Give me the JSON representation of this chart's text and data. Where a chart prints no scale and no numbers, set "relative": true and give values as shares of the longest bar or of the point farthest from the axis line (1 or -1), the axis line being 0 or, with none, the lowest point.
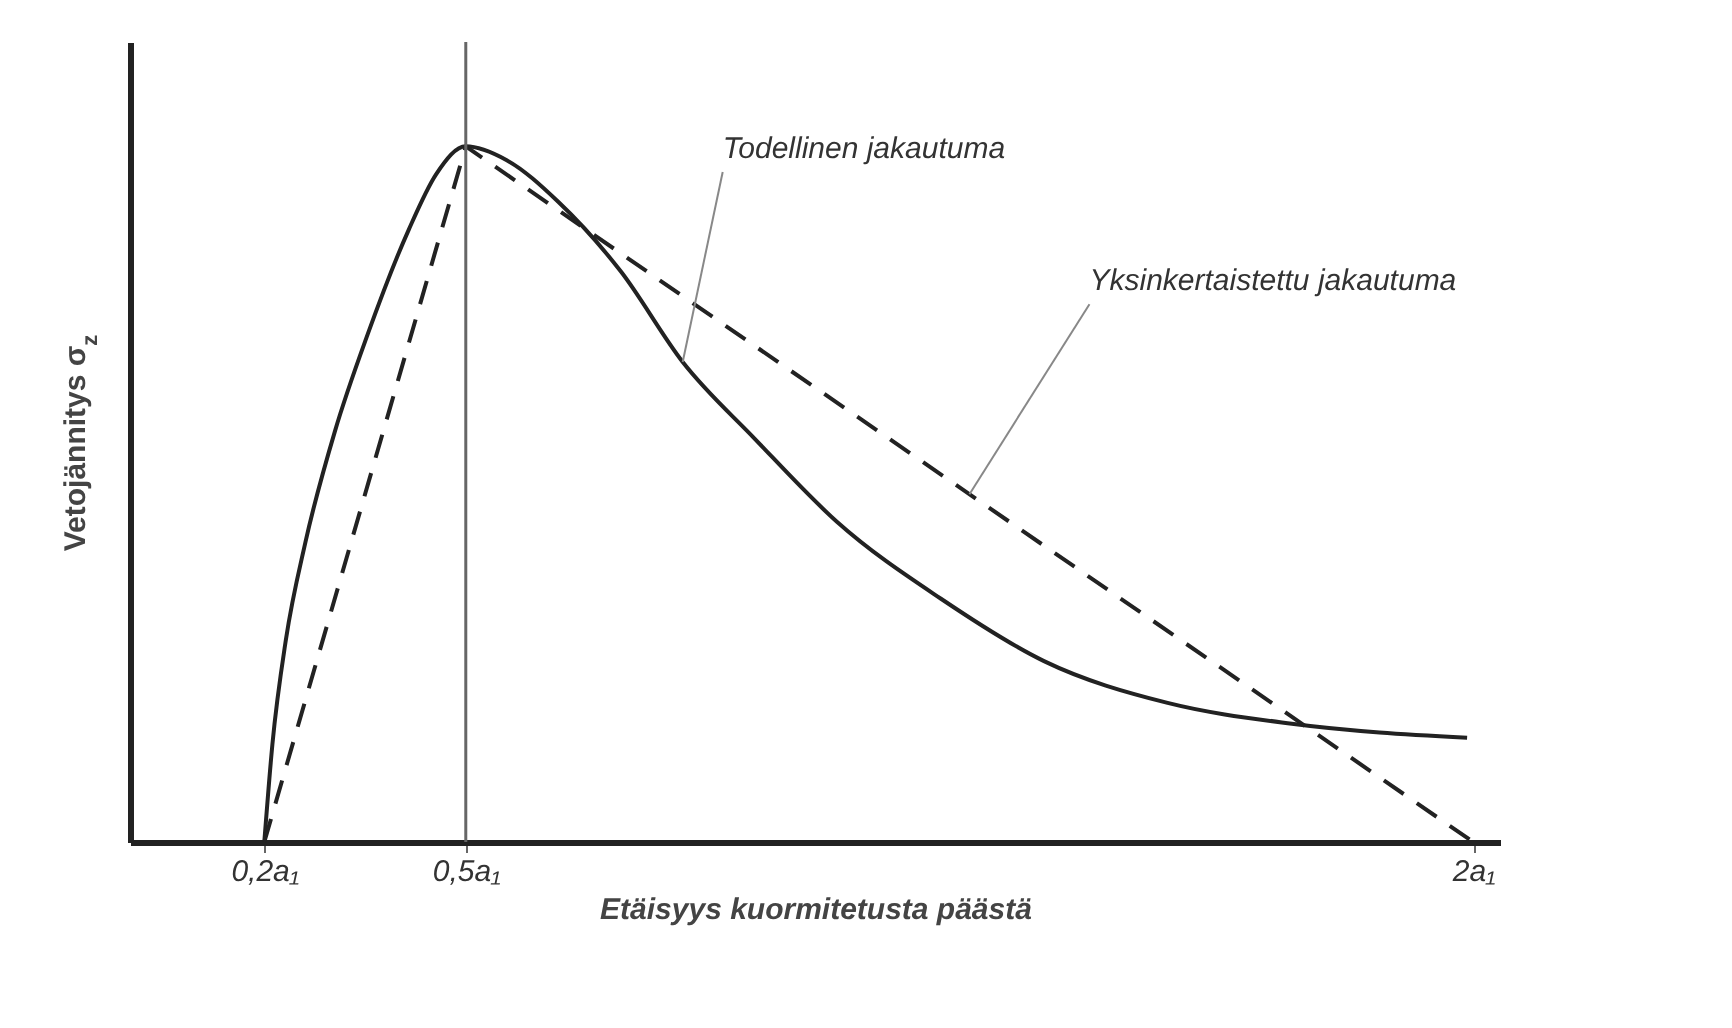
{
  "chart_data": {
    "type": "line",
    "ylabel": "Vetojännitys σ$_{z}$",
    "xlabel": "Etäisyys kuormitetusta päästä",
    "relative": true,
    "grid": false,
    "xlim": [
      0,
      2.04
    ],
    "xticks": [
      {
        "value": 0.2,
        "label": "0,2a₁"
      },
      {
        "value": 0.5,
        "label": "0,5a₁"
      },
      {
        "value": 2,
        "label": "2a₁"
      }
    ],
    "ref_lines": [
      {
        "axis": "x",
        "value": 0.5,
        "color": "#666666"
      }
    ],
    "series": [
      {
        "color": "#222222",
        "line_style": "solid",
        "x": [
          0.2,
          0.212,
          0.232,
          0.261,
          0.305,
          0.354,
          0.415,
          0.456,
          0.5,
          0.561,
          0.638,
          0.731,
          0.823,
          0.93,
          1.053,
          1.207,
          1.361,
          1.545,
          1.73,
          1.991
        ],
        "values": [
          0,
          0.14,
          0.29,
          0.43,
          0.59,
          0.73,
          0.88,
          0.96,
          1,
          0.98,
          0.92,
          0.82,
          0.69,
          0.58,
          0.46,
          0.35,
          0.26,
          0.2,
          0.17,
          0.15
        ]
      },
      {
        "color": "#222222",
        "line_style": "dashed",
        "x": [
          0.2,
          0.5,
          2
        ],
        "values": [
          0,
          1,
          0
        ]
      }
    ],
    "annotations": [
      {
        "text": "Todellinen jakautuma",
        "x": 0.823,
        "y": 0.69
      },
      {
        "text": "Yksinkertaistettu jakautuma",
        "x": 1.25,
        "y": 0.5
      }
    ]
  }
}
